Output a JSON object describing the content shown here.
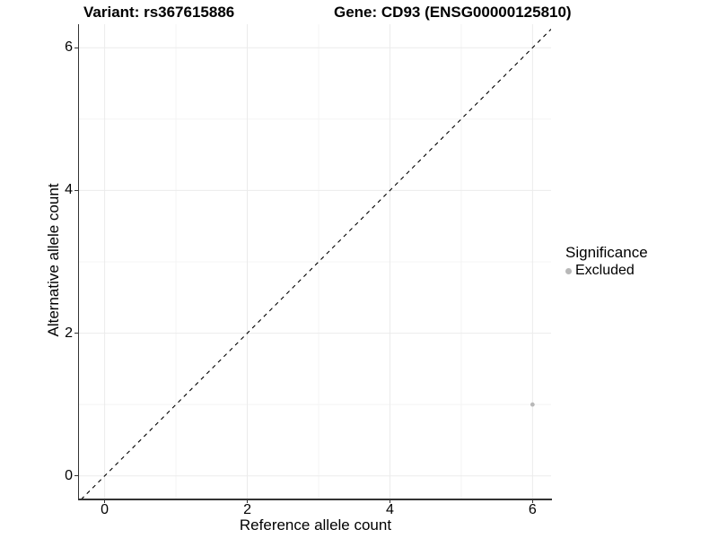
{
  "titles": {
    "variant": "Variant: rs367615886",
    "gene": "Gene: CD93 (ENSG00000125810)"
  },
  "axes": {
    "x": {
      "label": "Reference allele count",
      "ticks": [
        0,
        2,
        4,
        6
      ]
    },
    "y": {
      "label": "Alternative allele count",
      "ticks": [
        0,
        2,
        4,
        6
      ]
    }
  },
  "legend": {
    "title": "Significance",
    "items": [
      {
        "label": "Excluded",
        "color": "#b8b8b8"
      }
    ]
  },
  "colors": {
    "grid_major": "#ebebeb",
    "grid_minor": "#f4f4f4",
    "axis_line": "#333333",
    "reference_line": "#000000",
    "point_excluded": "#b8b8b8",
    "background": "#ffffff"
  },
  "chart_data": {
    "type": "scatter",
    "title": "Variant: rs367615886",
    "subtitle": "Gene: CD93 (ENSG00000125810)",
    "xlabel": "Reference allele count",
    "ylabel": "Alternative allele count",
    "xlim": [
      -0.36,
      6.26
    ],
    "ylim": [
      -0.33,
      6.33
    ],
    "x_ticks": [
      0,
      2,
      4,
      6
    ],
    "y_ticks": [
      0,
      2,
      4,
      6
    ],
    "minor_gridlines": [
      1,
      3,
      5
    ],
    "grid": true,
    "legend_position": "right",
    "series": [
      {
        "name": "Excluded",
        "color": "#b8b8b8",
        "points": [
          [
            6,
            1
          ]
        ]
      }
    ],
    "reference_line": {
      "kind": "identity",
      "equation": "y = x",
      "style": "dashed",
      "color": "#000000"
    }
  }
}
